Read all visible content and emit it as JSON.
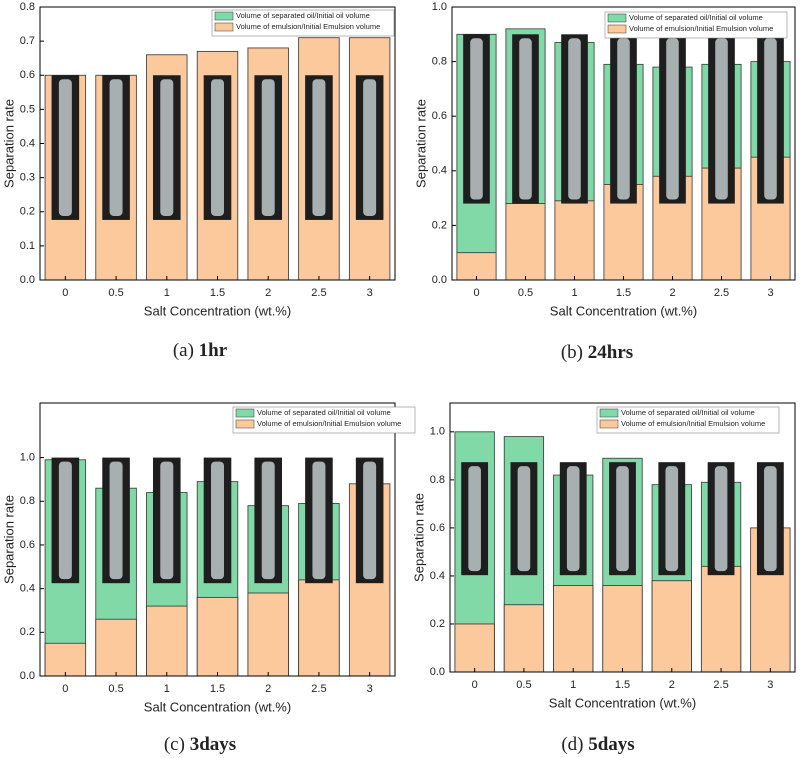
{
  "chart_data": [
    {
      "type": "bar",
      "caption_label": "(a)",
      "caption": "1hr",
      "xlabel": "Salt Concentration (wt.%)",
      "ylabel": "Separation rate",
      "categories": [
        "0",
        "0.5",
        "1",
        "1.5",
        "2",
        "2.5",
        "3"
      ],
      "series": [
        {
          "name": "Volume of separated oil/Initial oil volume",
          "color": "#80d9a6",
          "values": [
            null,
            null,
            null,
            null,
            null,
            null,
            null
          ]
        },
        {
          "name": "Volume of emulsion/Initial Emulsion volume",
          "color": "#fbc99b",
          "values": [
            0.6,
            0.6,
            0.66,
            0.67,
            0.68,
            0.71,
            0.71
          ]
        }
      ],
      "ylim": [
        0,
        0.8
      ],
      "yticks": [
        {
          "value": 0,
          "label": "0.0"
        },
        0.1,
        0.2,
        0.3,
        0.4,
        0.5,
        0.6,
        0.7,
        0.8
      ],
      "legend": "upper right",
      "grid": false
    },
    {
      "type": "bar",
      "caption_label": "(b)",
      "caption": "24hrs",
      "xlabel": "Salt Concentration (wt.%)",
      "ylabel": "Separation rate",
      "categories": [
        "0",
        "0.5",
        "1",
        "1.5",
        "2",
        "2.5",
        "3"
      ],
      "series": [
        {
          "name": "Volume of separated oil/Initial oil volume",
          "color": "#80d9a6",
          "values": [
            0.9,
            0.92,
            0.87,
            0.79,
            0.78,
            0.79,
            0.8
          ]
        },
        {
          "name": "Volume of emulsion/Initial Emulsion volume",
          "color": "#fbc99b",
          "values": [
            0.1,
            0.28,
            0.29,
            0.35,
            0.38,
            0.41,
            0.45
          ]
        }
      ],
      "ylim": [
        0,
        1.0
      ],
      "yticks": [
        {
          "value": 0,
          "label": "0.0"
        },
        0.2,
        0.4,
        0.6,
        0.8,
        {
          "value": 1,
          "label": "1.0"
        }
      ],
      "legend": "upper right",
      "grid": false
    },
    {
      "type": "bar",
      "caption_label": "(c)",
      "caption": "3days",
      "xlabel": "Salt Concentration (wt.%)",
      "ylabel": "Separation rate",
      "categories": [
        "0",
        "0.5",
        "1",
        "1.5",
        "2",
        "2.5",
        "3"
      ],
      "series": [
        {
          "name": "Volume of separated oil/Initial oil volume",
          "color": "#80d9a6",
          "values": [
            0.99,
            0.86,
            0.84,
            0.89,
            0.78,
            0.79,
            null
          ]
        },
        {
          "name": "Volume of emulsion/Initial Emulsion volume",
          "color": "#fbc99b",
          "values": [
            0.15,
            0.26,
            0.32,
            0.36,
            0.38,
            0.44,
            0.88
          ]
        }
      ],
      "ylim": [
        0,
        1.25
      ],
      "yticks": [
        {
          "value": 0,
          "label": "0.0"
        },
        0.2,
        0.4,
        0.6,
        0.8,
        {
          "value": 1,
          "label": "1.0"
        }
      ],
      "legend": "upper right",
      "grid": false
    },
    {
      "type": "bar",
      "caption_label": "(d)",
      "caption": "5days",
      "xlabel": "Salt Concentration (wt.%)",
      "ylabel": "Separation rate",
      "categories": [
        "0",
        "0.5",
        "1",
        "1.5",
        "2",
        "2.5",
        "3"
      ],
      "series": [
        {
          "name": "Volume of separated oil/Initial oil volume",
          "color": "#80d9a6",
          "values": [
            1.0,
            0.98,
            0.82,
            0.89,
            0.78,
            0.79,
            null
          ]
        },
        {
          "name": "Volume of emulsion/Initial Emulsion volume",
          "color": "#fbc99b",
          "values": [
            0.2,
            0.28,
            0.36,
            0.36,
            0.38,
            0.44,
            0.6
          ]
        }
      ],
      "ylim": [
        0,
        1.12
      ],
      "yticks": [
        {
          "value": 0,
          "label": "0.0"
        },
        0.2,
        0.4,
        0.6,
        0.8,
        {
          "value": 1,
          "label": "1.0"
        }
      ],
      "legend": "upper right",
      "grid": false
    }
  ]
}
